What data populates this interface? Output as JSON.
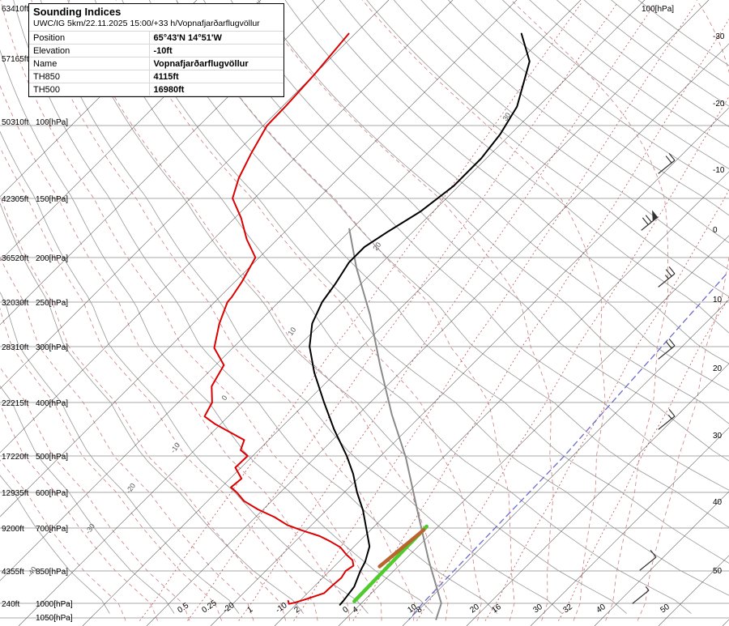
{
  "info_panel": {
    "title": "Sounding Indices",
    "model_line": "UWC/IG 5km/22.11.2025 15:00/+33 h/Vopnafjarðarflugvöllur",
    "rows": [
      {
        "label": "Position",
        "value": "65°43'N 14°51'W"
      },
      {
        "label": "Elevation",
        "value": "-10ft"
      },
      {
        "label": "Name",
        "value": "Vopnafjarðarflugvöllur"
      },
      {
        "label": "TH850",
        "value": "4115ft"
      },
      {
        "label": "TH500",
        "value": "16980ft"
      }
    ]
  },
  "axes": {
    "left_rows": [
      {
        "ft": "63410ft",
        "hpa": ""
      },
      {
        "ft": "57165ft",
        "hpa": ""
      },
      {
        "ft": "50310ft",
        "hpa": "100[hPa]"
      },
      {
        "ft": "42305ft",
        "hpa": "150[hPa]"
      },
      {
        "ft": "36520ft",
        "hpa": "200[hPa]"
      },
      {
        "ft": "32030ft",
        "hpa": "250[hPa]"
      },
      {
        "ft": "28310ft",
        "hpa": "300[hPa]"
      },
      {
        "ft": "22215ft",
        "hpa": "400[hPa]"
      },
      {
        "ft": "17220ft",
        "hpa": "500[hPa]"
      },
      {
        "ft": "12935ft",
        "hpa": "600[hPa]"
      },
      {
        "ft": "9200ft",
        "hpa": "700[hPa]"
      },
      {
        "ft": "4355ft",
        "hpa": "850[hPa]"
      },
      {
        "ft": "240ft",
        "hpa": "1000[hPa]"
      },
      {
        "ft": "",
        "hpa": "1050[hPa]"
      }
    ],
    "right_top_label": "100[hPa]",
    "right_temp_labels": [
      "-30",
      "-20",
      "-10",
      "0",
      "10",
      "20",
      "30",
      "40",
      "50"
    ],
    "bottom_labels": [
      "0.5",
      "0.25",
      "-20",
      "1",
      "-10",
      "2",
      "0",
      "4",
      "10",
      "8",
      "20",
      "16",
      "30",
      "32",
      "40",
      "50"
    ],
    "inchart_adiabat_labels": [
      "30",
      "20",
      "10",
      "0",
      "-10",
      "-20",
      "-30",
      "-40"
    ]
  },
  "chart_data": {
    "type": "skewt_log_p_sounding",
    "title": "Sounding Indices",
    "pressure_axis_hpa": [
      100,
      150,
      200,
      250,
      300,
      400,
      500,
      600,
      700,
      850,
      1000,
      1050
    ],
    "temp_axis_c": [
      -30,
      -20,
      -10,
      0,
      10,
      20,
      30,
      40,
      50
    ],
    "isotherm_step_c": 10,
    "mixing_ratio_lines_gkg": [
      0.25,
      0.5,
      1,
      2,
      4,
      8,
      16,
      32
    ],
    "grid_colors": {
      "isobar": "#aaaaaa",
      "isotherm": "#3a3a3a",
      "dry_adiabat": "#989898",
      "moist_adiabat": "#cc8080",
      "mixing_ratio": "#bb5555"
    },
    "series": [
      {
        "name": "reference-blue",
        "color": "#6a6acc",
        "style": "dashed",
        "points_p_t": [
          [
            218,
            5.6
          ],
          [
            500,
            8.7
          ],
          [
            1000,
            9.6
          ],
          [
            1055,
            10.0
          ]
        ]
      },
      {
        "name": "parcel",
        "color": "#8a8a8a",
        "style": "solid",
        "points_p_t": [
          [
            174,
            -60.4
          ],
          [
            210,
            -53.3
          ],
          [
            263,
            -43.8
          ],
          [
            330,
            -34.3
          ],
          [
            420,
            -24.8
          ],
          [
            503,
            -15.9
          ],
          [
            648,
            -5.8
          ],
          [
            808,
            3.7
          ],
          [
            1000,
            12.5
          ],
          [
            1055,
            14.2
          ]
        ]
      },
      {
        "name": "lifted-parcel-green",
        "color": "#4ecb2d",
        "style": "solid-thick",
        "points_p_t": [
          [
            695,
            -1.8
          ],
          [
            990,
            -1.4
          ]
        ]
      },
      {
        "name": "cin-orange",
        "color": "#b8652f",
        "style": "solid-thick",
        "points_p_t": [
          [
            706,
            -1.7
          ],
          [
            833,
            -2.9
          ]
        ]
      },
      {
        "name": "dewpoint",
        "color": "#dd0000",
        "style": "solid",
        "points_p_t": [
          [
            60,
            -91
          ],
          [
            75,
            -90
          ],
          [
            90,
            -89.5
          ],
          [
            100,
            -89.4
          ],
          [
            117,
            -87.5
          ],
          [
            134,
            -85.6
          ],
          [
            150,
            -83.4
          ],
          [
            165,
            -79
          ],
          [
            183,
            -74.8
          ],
          [
            200,
            -70.6
          ],
          [
            226,
            -68.9
          ],
          [
            244,
            -68.1
          ],
          [
            250,
            -68
          ],
          [
            273,
            -65.9
          ],
          [
            302,
            -62.9
          ],
          [
            330,
            -58.7
          ],
          [
            368,
            -57.3
          ],
          [
            400,
            -54.7
          ],
          [
            424,
            -53.7
          ],
          [
            437,
            -51
          ],
          [
            468,
            -43.8
          ],
          [
            488,
            -42.8
          ],
          [
            500,
            -40.8
          ],
          [
            530,
            -40.9
          ],
          [
            560,
            -38.2
          ],
          [
            585,
            -38.5
          ],
          [
            600,
            -36.8
          ],
          [
            623,
            -34.3
          ],
          [
            646,
            -30.8
          ],
          [
            668,
            -27
          ],
          [
            691,
            -23.8
          ],
          [
            707,
            -20.8
          ],
          [
            726,
            -17
          ],
          [
            743,
            -14.6
          ],
          [
            764,
            -12
          ],
          [
            790,
            -9.9
          ],
          [
            810,
            -8.1
          ],
          [
            830,
            -7.1
          ],
          [
            850,
            -7.5
          ],
          [
            880,
            -7.1
          ],
          [
            915,
            -7.3
          ],
          [
            950,
            -7.4
          ],
          [
            975,
            -9
          ],
          [
            995,
            -10.4
          ],
          [
            1002,
            -11.2
          ],
          [
            988,
            -11.8
          ]
        ]
      },
      {
        "name": "temperature",
        "color": "#000000",
        "style": "solid",
        "points_p_t": [
          [
            60,
            -64
          ],
          [
            70,
            -58.4
          ],
          [
            90,
            -53.3
          ],
          [
            105,
            -51.6
          ],
          [
            120,
            -50.8
          ],
          [
            140,
            -50.8
          ],
          [
            160,
            -52
          ],
          [
            176,
            -53.9
          ],
          [
            190,
            -55.2
          ],
          [
            205,
            -55.2
          ],
          [
            228,
            -54
          ],
          [
            250,
            -53.2
          ],
          [
            273,
            -51.4
          ],
          [
            300,
            -48.2
          ],
          [
            343,
            -43.4
          ],
          [
            400,
            -37.2
          ],
          [
            447,
            -31.5
          ],
          [
            500,
            -25.3
          ],
          [
            547,
            -21.5
          ],
          [
            600,
            -18
          ],
          [
            648,
            -14.3
          ],
          [
            700,
            -11
          ],
          [
            761,
            -7.6
          ],
          [
            815,
            -5.9
          ],
          [
            850,
            -5.2
          ],
          [
            920,
            -3.7
          ],
          [
            985,
            -3.2
          ],
          [
            1005,
            -3.1
          ]
        ]
      }
    ],
    "wind_barbs": [
      {
        "flag": 0,
        "full": 2,
        "half": 0
      },
      {
        "flag": 1,
        "full": 2,
        "half": 0
      },
      {
        "flag": 0,
        "full": 2,
        "half": 1
      },
      {
        "flag": 0,
        "full": 2,
        "half": 0
      },
      {
        "flag": 0,
        "full": 1,
        "half": 1
      },
      {
        "flag": 0,
        "full": 1,
        "half": 0
      },
      {
        "flag": 0,
        "full": 0,
        "half": 1
      }
    ]
  }
}
